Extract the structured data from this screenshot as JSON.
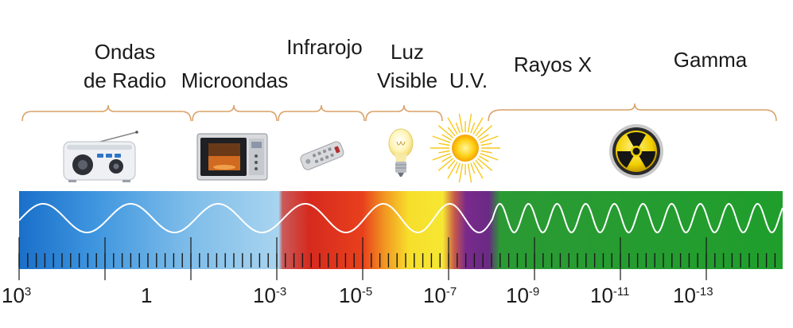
{
  "bands": {
    "radio_line1": "Ondas",
    "radio_line2": "de Radio",
    "microwave": "Microondas",
    "infrared": "Infrarojo",
    "visible_line1": "Luz",
    "visible_line2": "Visible",
    "uv": "U.V.",
    "xray": "Rayos X",
    "gamma": "Gamma"
  },
  "scale": {
    "ticks": [
      {
        "base": "10",
        "exp": "3"
      },
      {
        "base": "1",
        "exp": ""
      },
      {
        "base": "10",
        "exp": "-3"
      },
      {
        "base": "10",
        "exp": "-5"
      },
      {
        "base": "10",
        "exp": "-7"
      },
      {
        "base": "10",
        "exp": "-9"
      },
      {
        "base": "10",
        "exp": "-11"
      },
      {
        "base": "10",
        "exp": "-13"
      }
    ]
  },
  "icons": [
    "radio-icon",
    "microwave-oven-icon",
    "remote-control-icon",
    "light-bulb-icon",
    "sun-icon",
    "radiation-icon"
  ],
  "colors": {
    "bracket": "#d9a066",
    "radio_blue": "#1e7fd4",
    "infrared_red": "#d9251c",
    "visible_yellow": "#f5e12a",
    "uv_purple": "#7d2a8e",
    "gamma_green": "#1f9e2c"
  }
}
